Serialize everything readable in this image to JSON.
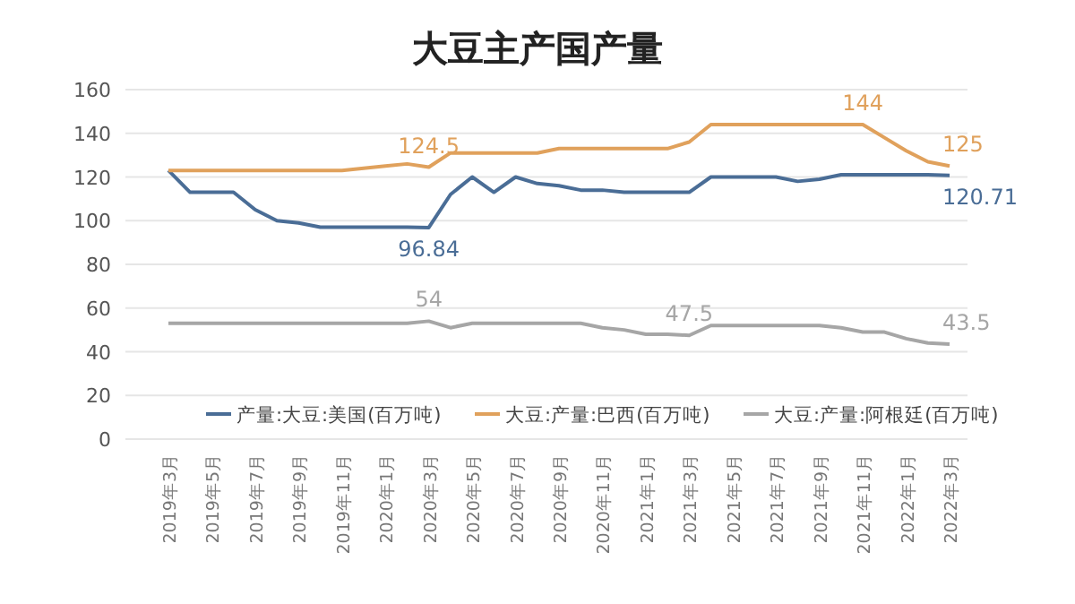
{
  "chart_data": {
    "type": "line",
    "title": "大豆主产国产量",
    "categories": [
      "2019年3月",
      null,
      "2019年5月",
      null,
      "2019年7月",
      null,
      "2019年9月",
      null,
      "2019年11月",
      null,
      "2020年1月",
      null,
      "2020年3月",
      null,
      "2020年5月",
      null,
      "2020年7月",
      null,
      "2020年9月",
      null,
      "2020年11月",
      null,
      "2021年1月",
      null,
      "2021年3月",
      null,
      "2021年5月",
      null,
      "2021年7月",
      null,
      "2021年9月",
      null,
      "2021年11月",
      null,
      "2022年1月",
      null,
      "2022年3月"
    ],
    "series": [
      {
        "name": "产量:大豆:美国(百万吨)",
        "color": "#4a6d96",
        "values": [
          123,
          113,
          113,
          113,
          105,
          100,
          99,
          97,
          97,
          97,
          97,
          97,
          96.84,
          112,
          120,
          113,
          120,
          117,
          116,
          114,
          114,
          113,
          113,
          113,
          113,
          120,
          120,
          120,
          120,
          118,
          119,
          121,
          121,
          121,
          121,
          121,
          120.71
        ],
        "value_labels": [
          null,
          null,
          null,
          null,
          null,
          null,
          null,
          null,
          null,
          null,
          null,
          null,
          "96.84",
          null,
          null,
          null,
          null,
          null,
          null,
          null,
          null,
          null,
          null,
          null,
          null,
          null,
          null,
          null,
          null,
          null,
          null,
          null,
          null,
          null,
          null,
          null,
          "120.71"
        ]
      },
      {
        "name": "大豆:产量:巴西(百万吨)",
        "color": "#e0a15c",
        "values": [
          123,
          123,
          123,
          123,
          123,
          123,
          123,
          123,
          123,
          124,
          125,
          126,
          124.5,
          131,
          131,
          131,
          131,
          131,
          133,
          133,
          133,
          133,
          133,
          133,
          136,
          144,
          144,
          144,
          144,
          144,
          144,
          144,
          144,
          138,
          132,
          127,
          125
        ],
        "value_labels": [
          null,
          null,
          null,
          null,
          null,
          null,
          null,
          null,
          null,
          null,
          null,
          null,
          "124.5",
          null,
          null,
          null,
          null,
          null,
          null,
          null,
          null,
          null,
          null,
          null,
          null,
          null,
          null,
          null,
          null,
          null,
          null,
          null,
          "144",
          null,
          null,
          null,
          "125"
        ]
      },
      {
        "name": "大豆:产量:阿根廷(百万吨)",
        "color": "#a6a6a6",
        "values": [
          53,
          53,
          53,
          53,
          53,
          53,
          53,
          53,
          53,
          53,
          53,
          53,
          54,
          51,
          53,
          53,
          53,
          53,
          53,
          53,
          51,
          50,
          48,
          48,
          47.5,
          52,
          52,
          52,
          52,
          52,
          52,
          51,
          49,
          49,
          46,
          44,
          43.5
        ],
        "value_labels": [
          null,
          null,
          null,
          null,
          null,
          null,
          null,
          null,
          null,
          null,
          null,
          null,
          "54",
          null,
          null,
          null,
          null,
          null,
          null,
          null,
          null,
          null,
          null,
          null,
          "47.5",
          null,
          null,
          null,
          null,
          null,
          null,
          null,
          null,
          null,
          null,
          null,
          "43.5"
        ]
      }
    ],
    "ylim": [
      0,
      160
    ],
    "yticks": [
      0,
      20,
      40,
      60,
      80,
      100,
      120,
      140,
      160
    ],
    "grid": "y",
    "legend": "bottom",
    "marker": "none",
    "line_style": "solid"
  }
}
